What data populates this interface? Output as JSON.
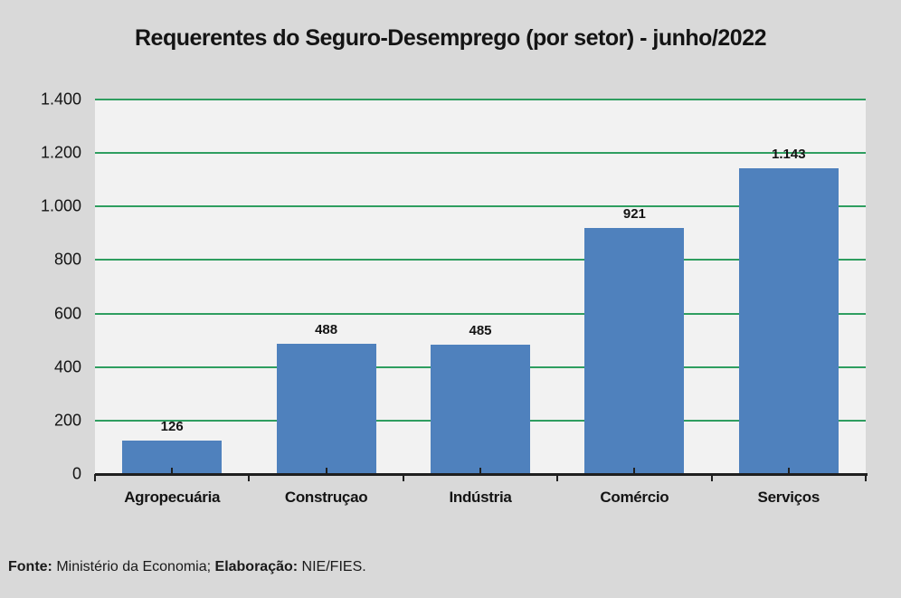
{
  "chart": {
    "title": "Requerentes do Seguro-Desemprego (por setor) - junho/2022",
    "footer_segments": [
      {
        "text": "Fonte:",
        "bold": true
      },
      {
        "text": " Ministério da Economia; ",
        "bold": false
      },
      {
        "text": "Elaboração:",
        "bold": true
      },
      {
        "text": " NIE/FIES.",
        "bold": false
      }
    ]
  },
  "chart_data": {
    "type": "bar",
    "title": "Requerentes do Seguro-Desemprego (por setor) - junho/2022",
    "categories": [
      "Agropecuária",
      "Construçao",
      "Indústria",
      "Comércio",
      "Serviços"
    ],
    "values": [
      126,
      488,
      485,
      921,
      1143
    ],
    "value_labels": [
      "126",
      "488",
      "485",
      "921",
      "1.143"
    ],
    "xlabel": "",
    "ylabel": "",
    "ylim": [
      0,
      1400
    ],
    "ytick_values": [
      0,
      200,
      400,
      600,
      800,
      1000,
      1200,
      1400
    ],
    "ytick_labels": [
      "0",
      "200",
      "400",
      "600",
      "800",
      "1.000",
      "1.200",
      "1.400"
    ],
    "grid": true,
    "legend": false,
    "source_note": "Fonte: Ministério da Economia; Elaboração: NIE/FIES.",
    "colors": {
      "background": "#d9d9d9",
      "plot_background": "#f2f2f2",
      "bar": "#4f81bd",
      "gridline": "#2f9e60",
      "axis": "#1f1f1f",
      "text": "#141414"
    }
  }
}
